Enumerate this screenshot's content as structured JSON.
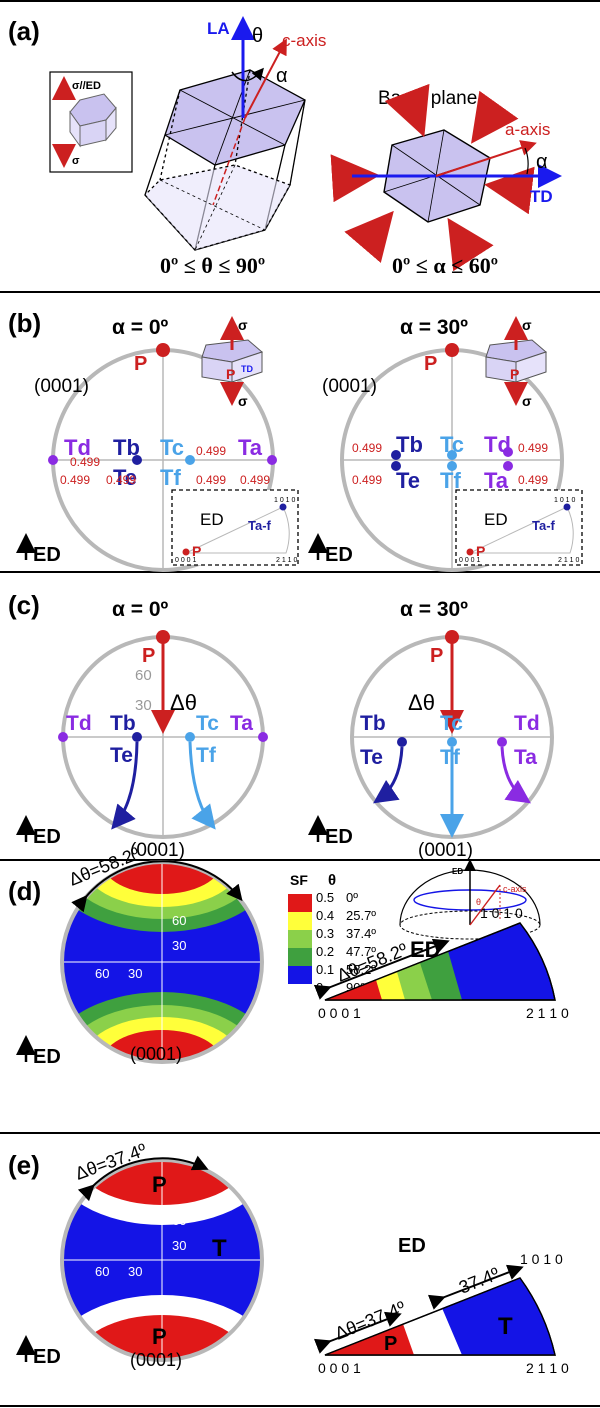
{
  "colors": {
    "red": "#cc2020",
    "blue": "#1a1aee",
    "navy": "#1f1fa0",
    "lightblue": "#4aa3e8",
    "purple": "#8a2be2",
    "gray": "#b8b8b8",
    "lavender": "#c9c2ef",
    "sf_red": "#e01818",
    "sf_yellow": "#ffff3a",
    "sf_lightgreen": "#8bd04a",
    "sf_green": "#3fa03f",
    "sf_blue": "#1414e6"
  },
  "a": {
    "label": "(a)",
    "inset_top": "σ//ED",
    "inset_bottom": "σ",
    "la": "LA",
    "theta": "θ",
    "caxis": "c-axis",
    "alpha": "α",
    "basal": "Basal plane",
    "aaxis": "a-axis",
    "td": "TD",
    "range_theta": "0º ≤ θ ≤ 90º",
    "range_alpha": "0º ≤ α ≤ 60º"
  },
  "b": {
    "label": "(b)",
    "left_title": "α = 0º",
    "right_title": "α = 30º",
    "pole": "(0001)",
    "p": "P",
    "ed": "ED",
    "sigma": "σ",
    "sf": "0.499",
    "t": {
      "a": "Ta",
      "b": "Tb",
      "c": "Tc",
      "d": "Td",
      "e": "Te",
      "f": "Tf",
      "td": "TD"
    },
    "inset_ed": "ED",
    "inset_taf": "Ta-f",
    "inset_1010": "1 0 1 0",
    "inset_2110": "2 1 1 0",
    "inset_0001": "0 0 0 1"
  },
  "c": {
    "label": "(c)",
    "left_title": "α = 0º",
    "right_title": "α = 30º",
    "p": "P",
    "dtheta": "Δθ",
    "t60": "60",
    "t30": "30",
    "pole": "(0001)",
    "ed": "ED",
    "t": {
      "a": "Ta",
      "b": "Tb",
      "c": "Tc",
      "d": "Td",
      "e": "Te",
      "f": "Tf"
    }
  },
  "d": {
    "label": "(d)",
    "dtheta": "Δθ=58.2º",
    "sf_header": "SF",
    "theta_header": "θ",
    "legend": [
      {
        "sf": "0.5",
        "theta": "0º"
      },
      {
        "sf": "0.4",
        "theta": "25.7º"
      },
      {
        "sf": "0.3",
        "theta": "37.4º"
      },
      {
        "sf": "0.2",
        "theta": "47.7º"
      },
      {
        "sf": "0.1",
        "theta": "58.2º"
      },
      {
        "sf": "0",
        "theta": "90º"
      }
    ],
    "t60": "60",
    "t30": "30",
    "pole": "(0001)",
    "ed": "ED",
    "hemi_ed": "ED",
    "hemi_theta": "θ",
    "hemi_caxis": "c-axis",
    "tri_1010": "1 0 1 0",
    "tri_0001": "0 0 0 1",
    "tri_2110": "2 1 1 0"
  },
  "e": {
    "label": "(e)",
    "dtheta": "Δθ=37.4º",
    "p": "P",
    "t": "T",
    "t60": "60",
    "t30": "30",
    "pole": "(0001)",
    "ed": "ED",
    "tri_ed": "ED",
    "tri_374": "37.4º",
    "tri_1010": "1 0 1 0",
    "tri_0001": "0 0 0 1",
    "tri_2110": "2 1 1 0"
  }
}
